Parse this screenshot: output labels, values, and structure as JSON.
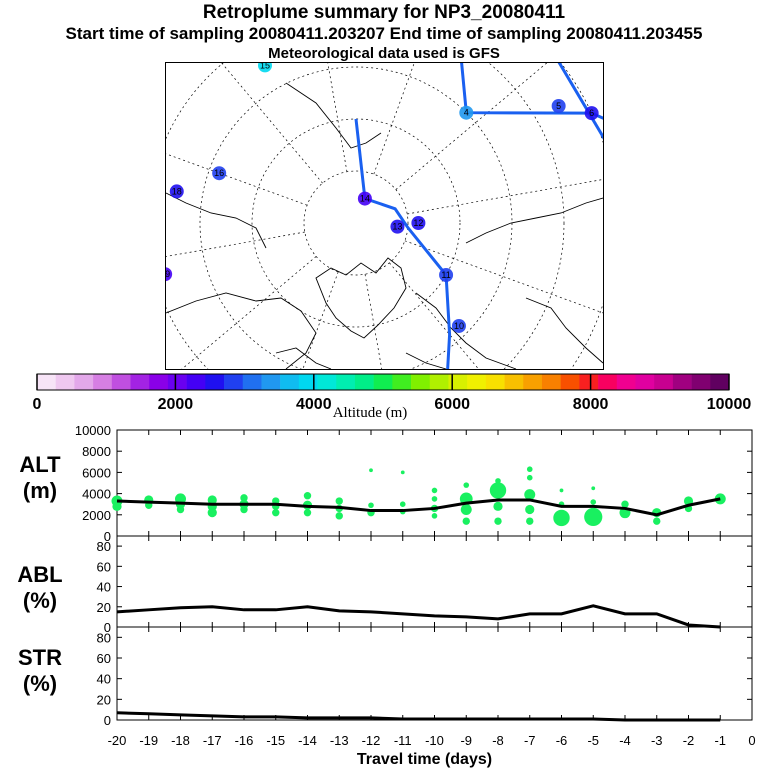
{
  "title": "Retroplume summary for NP3_20080411",
  "subtitle": "Start time of sampling 20080411.203207     End time of sampling 20080411.203455",
  "subtitle2": "Meteorological data used is GFS",
  "colorbar": {
    "label": "Altitude (m)",
    "ticks": [
      "0",
      "2000",
      "4000",
      "6000",
      "8000",
      "10000"
    ],
    "range": [
      0,
      10000
    ]
  },
  "map_labels": [
    {
      "text": "1",
      "lon": 250,
      "lat": 25
    },
    {
      "text": "2",
      "lon": 318,
      "lat": 38
    },
    {
      "text": "3",
      "lon": 322,
      "lat": 48
    },
    {
      "text": "4",
      "lon": 305,
      "lat": 60
    },
    {
      "text": "5",
      "lon": 290,
      "lat": 45
    },
    {
      "text": "6",
      "lon": 285,
      "lat": 40
    },
    {
      "text": "7",
      "lon": 275,
      "lat": 30
    },
    {
      "text": "8",
      "lon": 180,
      "lat": 40
    },
    {
      "text": "9",
      "lon": 200,
      "lat": 55
    },
    {
      "text": "10",
      "lon": 215,
      "lat": 62
    },
    {
      "text": "11",
      "lon": 230,
      "lat": 70
    },
    {
      "text": "12",
      "lon": 260,
      "lat": 78
    },
    {
      "text": "13",
      "lon": 255,
      "lat": 82
    },
    {
      "text": "14",
      "lon": 330,
      "lat": 85
    },
    {
      "text": "15",
      "lon": 20,
      "lat": 55
    },
    {
      "text": "16",
      "lon": 60,
      "lat": 62
    },
    {
      "text": "17",
      "lon": 0,
      "lat": 50
    },
    {
      "text": "18",
      "lon": 70,
      "lat": 55
    },
    {
      "text": "19",
      "lon": 95,
      "lat": 52
    },
    {
      "text": "20",
      "lon": 140,
      "lat": 30
    }
  ],
  "chart_data": [
    {
      "type": "line",
      "name": "ALT",
      "ylabel": "ALT\n(m)",
      "ylabel_lines": [
        "ALT",
        "(m)"
      ],
      "ylim": [
        0,
        10000
      ],
      "yticks": [
        "0",
        "2000",
        "4000",
        "6000",
        "8000",
        "10000"
      ],
      "x": [
        -20,
        -19,
        -18,
        -17,
        -16,
        -15,
        -14,
        -13,
        -12,
        -11,
        -10,
        -9,
        -8,
        -7,
        -6,
        -5,
        -4,
        -3,
        -2,
        -1
      ],
      "values": [
        3300,
        3200,
        3100,
        3000,
        3000,
        3000,
        2800,
        2700,
        2400,
        2400,
        2600,
        3100,
        3400,
        3400,
        2800,
        2800,
        2600,
        2000,
        2900,
        3500
      ],
      "scatter_points": [
        {
          "x": -20,
          "y": 3300,
          "s": 5
        },
        {
          "x": -20,
          "y": 2800,
          "s": 4
        },
        {
          "x": -19,
          "y": 3400,
          "s": 4
        },
        {
          "x": -19,
          "y": 2900,
          "s": 3
        },
        {
          "x": -18,
          "y": 3500,
          "s": 5
        },
        {
          "x": -18,
          "y": 3000,
          "s": 4
        },
        {
          "x": -18,
          "y": 2500,
          "s": 3
        },
        {
          "x": -17,
          "y": 3400,
          "s": 4
        },
        {
          "x": -17,
          "y": 2800,
          "s": 4
        },
        {
          "x": -17,
          "y": 2200,
          "s": 4
        },
        {
          "x": -16,
          "y": 3600,
          "s": 3
        },
        {
          "x": -16,
          "y": 3000,
          "s": 4
        },
        {
          "x": -16,
          "y": 2500,
          "s": 3
        },
        {
          "x": -15,
          "y": 3300,
          "s": 3
        },
        {
          "x": -15,
          "y": 2800,
          "s": 3
        },
        {
          "x": -15,
          "y": 2200,
          "s": 3
        },
        {
          "x": -14,
          "y": 3800,
          "s": 3
        },
        {
          "x": -14,
          "y": 2900,
          "s": 4
        },
        {
          "x": -14,
          "y": 2200,
          "s": 3
        },
        {
          "x": -13,
          "y": 3300,
          "s": 3
        },
        {
          "x": -13,
          "y": 2600,
          "s": 3
        },
        {
          "x": -13,
          "y": 1900,
          "s": 3
        },
        {
          "x": -12,
          "y": 6200,
          "s": 1
        },
        {
          "x": -12,
          "y": 2900,
          "s": 2
        },
        {
          "x": -12,
          "y": 2200,
          "s": 3
        },
        {
          "x": -11,
          "y": 6000,
          "s": 1
        },
        {
          "x": -11,
          "y": 3000,
          "s": 2
        },
        {
          "x": -11,
          "y": 2300,
          "s": 2
        },
        {
          "x": -10,
          "y": 4300,
          "s": 2
        },
        {
          "x": -10,
          "y": 3500,
          "s": 2
        },
        {
          "x": -10,
          "y": 2600,
          "s": 3
        },
        {
          "x": -10,
          "y": 1900,
          "s": 2
        },
        {
          "x": -9,
          "y": 4800,
          "s": 2
        },
        {
          "x": -9,
          "y": 3500,
          "s": 6
        },
        {
          "x": -9,
          "y": 2500,
          "s": 5
        },
        {
          "x": -9,
          "y": 1400,
          "s": 3
        },
        {
          "x": -8,
          "y": 5200,
          "s": 2
        },
        {
          "x": -8,
          "y": 4300,
          "s": 8
        },
        {
          "x": -8,
          "y": 2800,
          "s": 4
        },
        {
          "x": -8,
          "y": 1400,
          "s": 3
        },
        {
          "x": -7,
          "y": 6300,
          "s": 2
        },
        {
          "x": -7,
          "y": 5500,
          "s": 2
        },
        {
          "x": -7,
          "y": 3900,
          "s": 5
        },
        {
          "x": -7,
          "y": 2500,
          "s": 4
        },
        {
          "x": -7,
          "y": 1400,
          "s": 3
        },
        {
          "x": -6,
          "y": 4300,
          "s": 1
        },
        {
          "x": -6,
          "y": 3000,
          "s": 2
        },
        {
          "x": -6,
          "y": 1700,
          "s": 8
        },
        {
          "x": -5,
          "y": 4500,
          "s": 1
        },
        {
          "x": -5,
          "y": 3200,
          "s": 2
        },
        {
          "x": -5,
          "y": 1800,
          "s": 9
        },
        {
          "x": -4,
          "y": 3000,
          "s": 3
        },
        {
          "x": -4,
          "y": 2200,
          "s": 5
        },
        {
          "x": -3,
          "y": 2200,
          "s": 4
        },
        {
          "x": -3,
          "y": 1400,
          "s": 3
        },
        {
          "x": -2,
          "y": 3300,
          "s": 4
        },
        {
          "x": -2,
          "y": 2600,
          "s": 3
        },
        {
          "x": -1,
          "y": 3500,
          "s": 5
        }
      ]
    },
    {
      "type": "line",
      "name": "ABL",
      "ylabel_lines": [
        "ABL",
        "(%)"
      ],
      "ylim": [
        0,
        90
      ],
      "yticks": [
        "0",
        "20",
        "40",
        "60",
        "80"
      ],
      "x": [
        -20,
        -19,
        -18,
        -17,
        -16,
        -15,
        -14,
        -13,
        -12,
        -11,
        -10,
        -9,
        -8,
        -7,
        -6,
        -5,
        -4,
        -3,
        -2,
        -1
      ],
      "values": [
        15,
        17,
        19,
        20,
        17,
        17,
        20,
        16,
        15,
        13,
        11,
        10,
        8,
        13,
        13,
        21,
        13,
        13,
        2,
        0
      ]
    },
    {
      "type": "line",
      "name": "STR",
      "ylabel_lines": [
        "STR",
        "(%)"
      ],
      "ylim": [
        0,
        90
      ],
      "yticks": [
        "0",
        "20",
        "40",
        "60",
        "80"
      ],
      "x": [
        -20,
        -19,
        -18,
        -17,
        -16,
        -15,
        -14,
        -13,
        -12,
        -11,
        -10,
        -9,
        -8,
        -7,
        -6,
        -5,
        -4,
        -3,
        -2,
        -1
      ],
      "values": [
        7,
        6,
        5,
        4,
        3,
        3,
        2,
        2,
        2,
        1,
        1,
        1,
        1,
        1,
        1,
        1,
        0,
        0,
        0,
        0
      ],
      "xlabel": "Travel time (days)",
      "xticks": [
        "-20",
        "-19",
        "-18",
        "-17",
        "-16",
        "-15",
        "-14",
        "-13",
        "-12",
        "-11",
        "-10",
        "-9",
        "-8",
        "-7",
        "-6",
        "-5",
        "-4",
        "-3",
        "-2",
        "-1",
        "0"
      ]
    }
  ]
}
